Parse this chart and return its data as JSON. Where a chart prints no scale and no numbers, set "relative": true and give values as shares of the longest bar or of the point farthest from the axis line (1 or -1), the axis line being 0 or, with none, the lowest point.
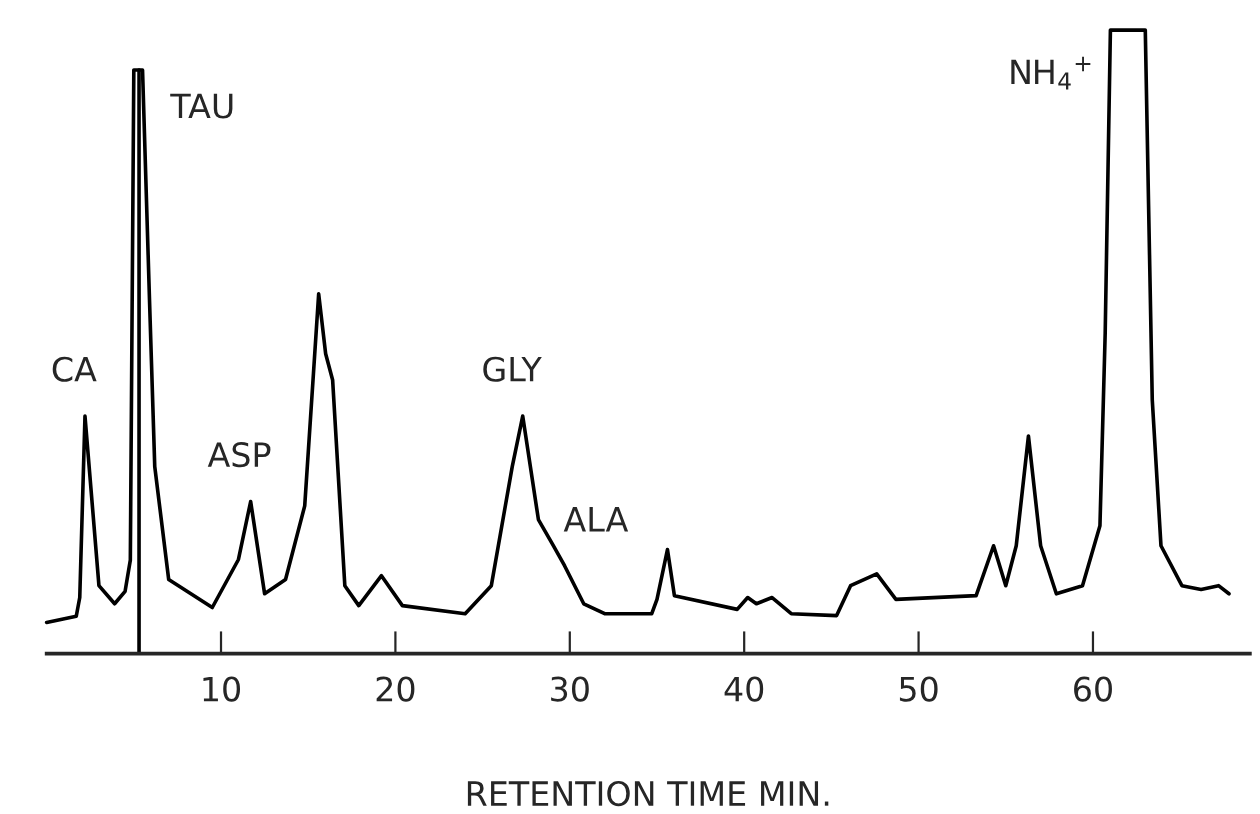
{
  "chart_data": {
    "type": "line",
    "relative": true,
    "xlabel": "RETENTION TIME MIN.",
    "xlim": [
      0,
      69
    ],
    "xticks": [
      10,
      20,
      30,
      40,
      50,
      60
    ],
    "tick_labels": "x",
    "grid": false,
    "legend": false,
    "series": [
      {
        "color": "#000000",
        "x": [
          0,
          1.7,
          1.9,
          2.2,
          3.0,
          3.9,
          4.5,
          4.8,
          5.0,
          5.5,
          5.9,
          6.2,
          7.0,
          9.5,
          11.0,
          11.7,
          12.5,
          13.7,
          14.8,
          15.3,
          15.6,
          16.0,
          16.4,
          17.1,
          17.9,
          19.2,
          20.4,
          24.0,
          25.5,
          26.7,
          27.3,
          28.2,
          29.0,
          29.7,
          30.8,
          32.0,
          34.7,
          35.0,
          35.6,
          36.0,
          39.6,
          40.2,
          40.7,
          41.6,
          42.7,
          45.3,
          46.1,
          47.6,
          48.7,
          53.3,
          54.3,
          55.0,
          55.6,
          56.3,
          57.0,
          57.9,
          59.4,
          60.4,
          60.7,
          61.0,
          63.0,
          63.4,
          63.9,
          65.1,
          66.2,
          67.2,
          67.8
        ],
        "values": [
          0.05,
          0.06,
          0.09,
          0.381,
          0.109,
          0.08,
          0.1,
          0.15,
          0.936,
          0.936,
          0.567,
          0.3,
          0.119,
          0.074,
          0.151,
          0.244,
          0.096,
          0.119,
          0.237,
          0.449,
          0.577,
          0.481,
          0.439,
          0.109,
          0.077,
          0.125,
          0.077,
          0.064,
          0.109,
          0.3,
          0.381,
          0.215,
          0.176,
          0.141,
          0.08,
          0.064,
          0.064,
          0.087,
          0.167,
          0.093,
          0.071,
          0.09,
          0.08,
          0.09,
          0.064,
          0.061,
          0.109,
          0.128,
          0.087,
          0.093,
          0.173,
          0.109,
          0.173,
          0.349,
          0.173,
          0.096,
          0.109,
          0.205,
          0.513,
          1.0,
          1.0,
          0.407,
          0.173,
          0.109,
          0.103,
          0.109,
          0.096
        ]
      }
    ],
    "ref_lines": [
      {
        "axis": "x",
        "value": 5.3,
        "color": "#000000"
      }
    ],
    "annotations": [
      {
        "text": "CA",
        "x": 2.2,
        "y": 0.381
      },
      {
        "text": "TAU",
        "x": 5.5,
        "y": 0.936
      },
      {
        "text": "ASP",
        "x": 11.7,
        "y": 0.244
      },
      {
        "text": "GLY",
        "x": 27.3,
        "y": 0.381
      },
      {
        "text": "ALA",
        "x": 29.0,
        "y": 0.176
      },
      {
        "text": "NH$_{4}$$^{+}$",
        "x": 61.0,
        "y": 1.0
      }
    ]
  }
}
